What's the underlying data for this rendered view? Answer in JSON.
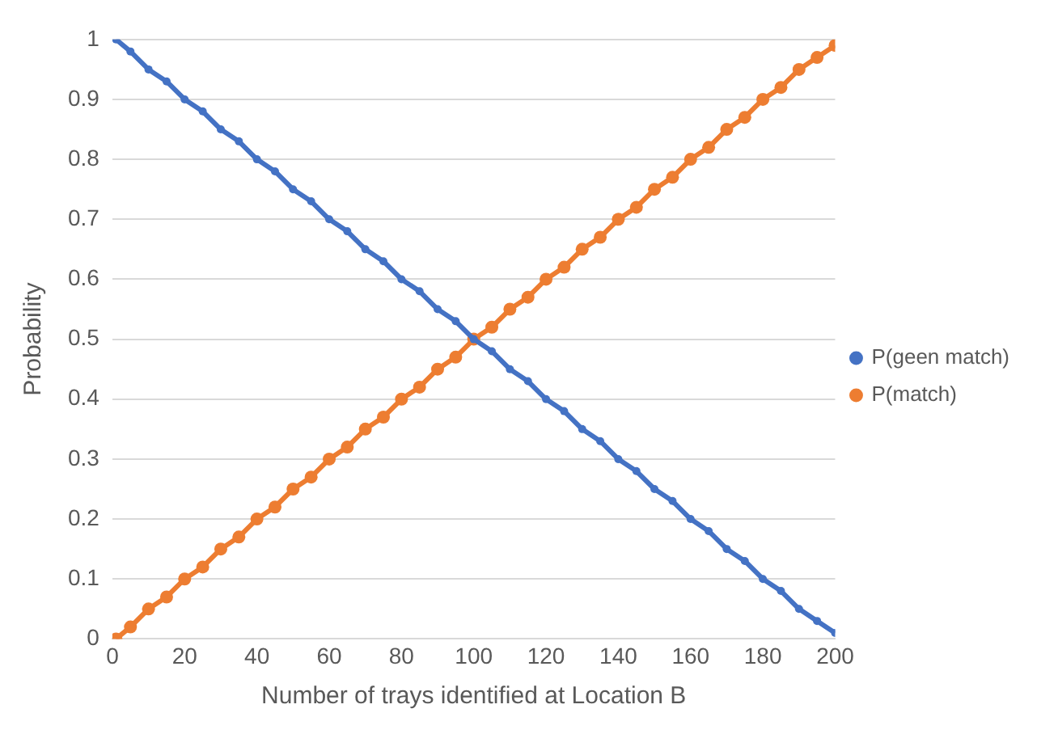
{
  "chart_data": {
    "type": "line",
    "xlabel": "Number of trays identified at Location B",
    "ylabel": "Probability",
    "x": [
      1,
      5,
      10,
      15,
      20,
      25,
      30,
      35,
      40,
      45,
      50,
      55,
      60,
      65,
      70,
      75,
      80,
      85,
      90,
      95,
      100,
      105,
      110,
      115,
      120,
      125,
      130,
      135,
      140,
      145,
      150,
      155,
      160,
      165,
      170,
      175,
      180,
      185,
      190,
      195,
      200
    ],
    "series": [
      {
        "name": "P(geen match)",
        "color": "#4472c4",
        "values": [
          1,
          0.98,
          0.95,
          0.93,
          0.9,
          0.88,
          0.85,
          0.83,
          0.8,
          0.78,
          0.75,
          0.73,
          0.7,
          0.68,
          0.65,
          0.63,
          0.6,
          0.58,
          0.55,
          0.53,
          0.5,
          0.48,
          0.45,
          0.43,
          0.4,
          0.38,
          0.35,
          0.33,
          0.3,
          0.28,
          0.25,
          0.23,
          0.2,
          0.18,
          0.15,
          0.13,
          0.1,
          0.08,
          0.05,
          0.03,
          0.01
        ]
      },
      {
        "name": "P(match)",
        "color": "#ed7d31",
        "values": [
          0,
          0.02,
          0.05,
          0.07,
          0.1,
          0.12,
          0.15,
          0.17,
          0.2,
          0.22,
          0.25,
          0.27,
          0.3,
          0.32,
          0.35,
          0.37,
          0.4,
          0.42,
          0.45,
          0.47,
          0.5,
          0.52,
          0.55,
          0.57,
          0.6,
          0.62,
          0.65,
          0.67,
          0.7,
          0.72,
          0.75,
          0.77,
          0.8,
          0.82,
          0.85,
          0.87,
          0.9,
          0.92,
          0.95,
          0.97,
          0.99
        ]
      }
    ],
    "xlim": [
      0,
      200
    ],
    "xticks": [
      0,
      20,
      40,
      60,
      80,
      100,
      120,
      140,
      160,
      180,
      200
    ],
    "ylim": [
      0,
      1
    ],
    "yticks": [
      0,
      0.1,
      0.2,
      0.3,
      0.4,
      0.5,
      0.6,
      0.7,
      0.8,
      0.9,
      1
    ],
    "grid": "y",
    "legend": "right",
    "marker": "circle",
    "line_style": "solid"
  }
}
